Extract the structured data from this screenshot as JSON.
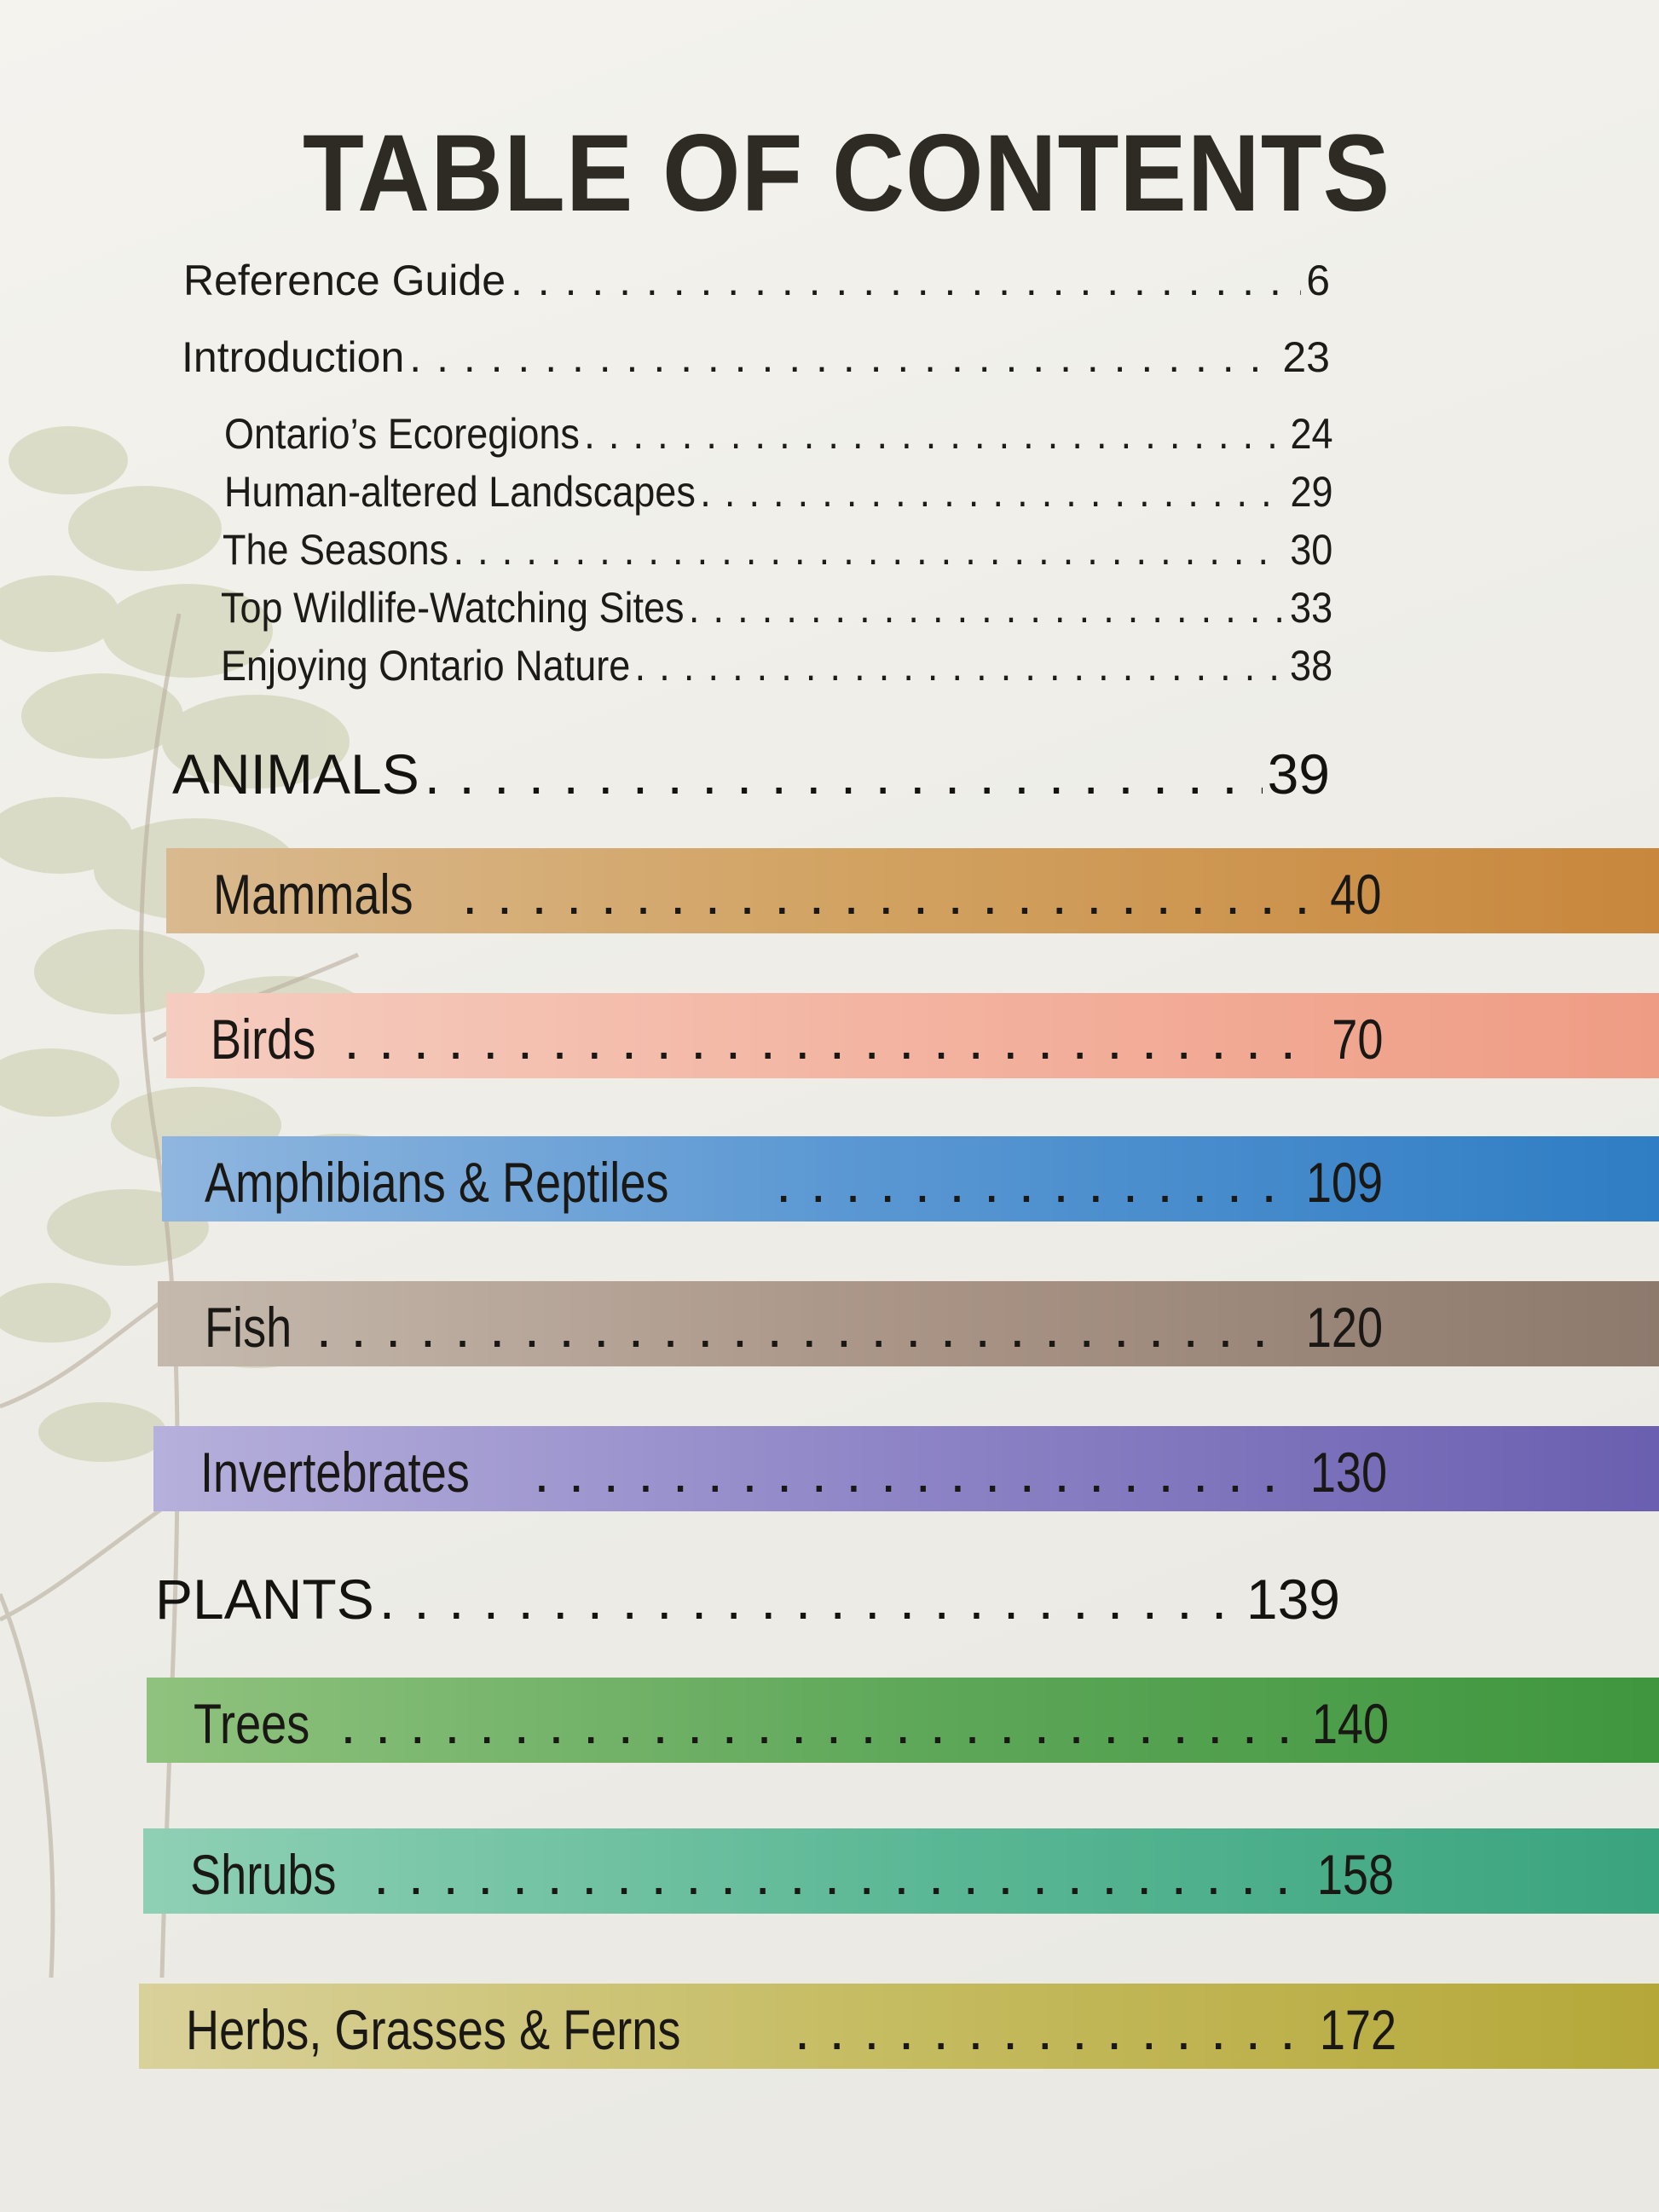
{
  "title": "TABLE OF CONTENTS",
  "front_matter": [
    {
      "label": "Reference Guide",
      "page": "6"
    },
    {
      "label": "Introduction",
      "page": "23"
    }
  ],
  "introduction_sub": [
    {
      "label": "Ontario’s Ecoregions",
      "page": "24"
    },
    {
      "label": "Human-altered Landscapes",
      "page": "29"
    },
    {
      "label": "The Seasons",
      "page": "30"
    },
    {
      "label": "Top Wildlife-Watching Sites",
      "page": "33"
    },
    {
      "label": "Enjoying Ontario Nature",
      "page": "38"
    }
  ],
  "animals": {
    "label": "ANIMALS",
    "page": "39",
    "chapters": [
      {
        "label": "Mammals",
        "page": "40",
        "color": "#c8873c"
      },
      {
        "label": "Birds",
        "page": "70",
        "color": "#ef9c84"
      },
      {
        "label": "Amphibians & Reptiles",
        "page": "109",
        "color": "#2f7dc4"
      },
      {
        "label": "Fish",
        "page": "120",
        "color": "#8d7a6d"
      },
      {
        "label": "Invertebrates",
        "page": "130",
        "color": "#6a5fb0"
      }
    ]
  },
  "plants": {
    "label": "PLANTS",
    "page": "139",
    "chapters": [
      {
        "label": "Trees",
        "page": "140",
        "color": "#3f963e"
      },
      {
        "label": "Shrubs",
        "page": "158",
        "color": "#3aa47e"
      },
      {
        "label": "Herbs, Grasses & Ferns",
        "page": "172",
        "color": "#b5a839"
      }
    ]
  }
}
